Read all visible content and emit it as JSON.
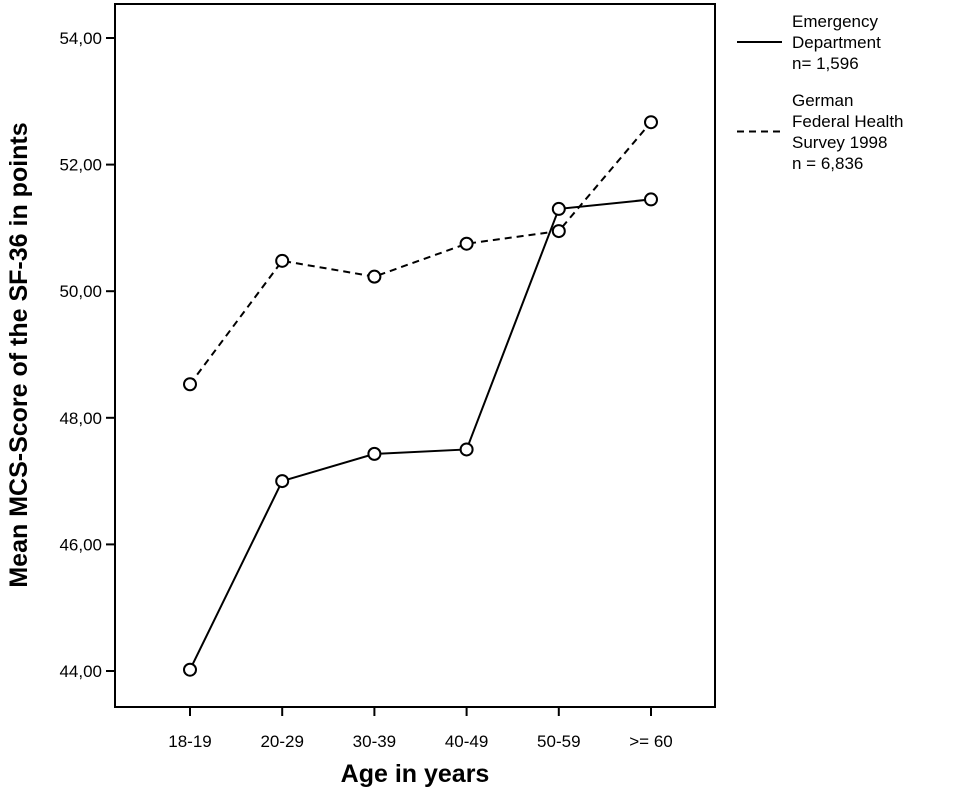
{
  "chart_data": {
    "type": "line",
    "title": "",
    "xlabel": "Age in years",
    "ylabel": "Mean MCS-Score of the SF-36 in points",
    "categories": [
      "18-19",
      "20-29",
      "30-39",
      "40-49",
      "50-59",
      ">= 60"
    ],
    "ylim": [
      43.3,
      54.6
    ],
    "yticks": [
      44,
      46,
      48,
      50,
      52,
      54
    ],
    "ytick_labels": [
      "44,00",
      "46,00",
      "48,00",
      "50,00",
      "52,00",
      "54,00"
    ],
    "grid": false,
    "legend_position": "right",
    "series": [
      {
        "name_lines": [
          "Emergency",
          "Department",
          "n= 1,596"
        ],
        "line_style": "solid",
        "marker": "open-circle",
        "color": "#000000",
        "values": [
          44.02,
          47.0,
          47.43,
          47.5,
          51.3,
          51.45
        ]
      },
      {
        "name_lines": [
          "German",
          "Federal Health",
          "Survey 1998",
          "n = 6,836"
        ],
        "line_style": "dashed",
        "marker": "open-circle",
        "color": "#000000",
        "values": [
          48.53,
          50.48,
          50.23,
          50.75,
          50.95,
          52.67
        ]
      }
    ]
  }
}
